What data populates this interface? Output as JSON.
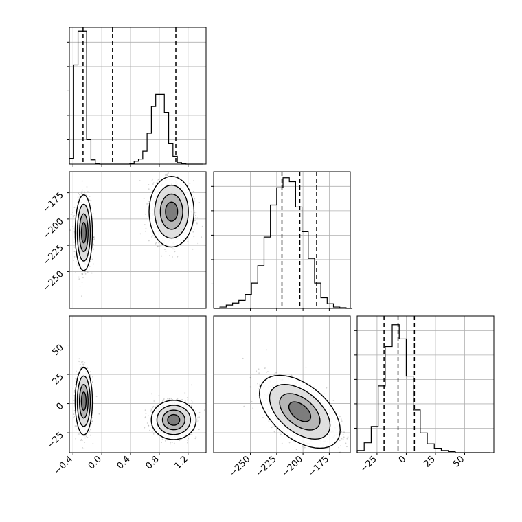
{
  "chart_data": {
    "type": "corner",
    "title": "",
    "colors": {
      "line": "#000000",
      "grid": "#b0b0b0",
      "points": "#000000"
    },
    "grid": true,
    "parameters": [
      {
        "name": "p0",
        "label": "",
        "range": [
          -0.45,
          1.45
        ],
        "ticks": [
          -0.4,
          0.0,
          0.4,
          0.8,
          1.2
        ],
        "tick_labels": [
          "−0.4",
          "0.0",
          "0.4",
          "0.8",
          "1.2"
        ],
        "quantiles": [
          -0.26,
          0.15,
          1.03
        ]
      },
      {
        "name": "p1",
        "label": "",
        "range": [
          -285,
          -155
        ],
        "ticks": [
          -250,
          -225,
          -200,
          -175
        ],
        "tick_labels": [
          "−250",
          "−225",
          "−200",
          "−175"
        ],
        "quantiles": [
          -220,
          -203,
          -187
        ]
      },
      {
        "name": "p2",
        "label": "",
        "range": [
          -42,
          75
        ],
        "ticks": [
          -25,
          0,
          25,
          50
        ],
        "tick_labels": [
          "−25",
          "0",
          "25",
          "50"
        ],
        "quantiles": [
          -19,
          -7,
          7
        ]
      }
    ],
    "histograms": [
      {
        "param": 0,
        "bin_edges": [
          -0.45,
          -0.39,
          -0.33,
          -0.27,
          -0.21,
          -0.15,
          -0.09,
          -0.03,
          0.03,
          0.09,
          0.15,
          0.21,
          0.27,
          0.33,
          0.39,
          0.45,
          0.51,
          0.57,
          0.63,
          0.69,
          0.75,
          0.81,
          0.87,
          0.93,
          0.99,
          1.05,
          1.11,
          1.17,
          1.23,
          1.29,
          1.35,
          1.41
        ],
        "counts": [
          6,
          22,
          137,
          185,
          6,
          1,
          0,
          0,
          0,
          0,
          0,
          0,
          0,
          0,
          0,
          0,
          0,
          0,
          0,
          0,
          0,
          0,
          0,
          0,
          0,
          0,
          0,
          0,
          0,
          0,
          0
        ],
        "max": 190
      },
      {
        "param": 0,
        "note": "combined display",
        "bin_edges": [
          -0.45,
          -0.39,
          -0.33,
          -0.27,
          -0.21,
          -0.15,
          -0.09,
          -0.03,
          0.03,
          0.09,
          0.15,
          0.21,
          0.27,
          0.33,
          0.39,
          0.45,
          0.51,
          0.57,
          0.63,
          0.69,
          0.75,
          0.81,
          0.87,
          0.93,
          0.99,
          1.05,
          1.11,
          1.17,
          1.23,
          1.29,
          1.35,
          1.41
        ],
        "counts": [
          8,
          138,
          185,
          185,
          34,
          6,
          1,
          0,
          0,
          0,
          0,
          0,
          0,
          0,
          1,
          4,
          7,
          18,
          43,
          80,
          97,
          97,
          72,
          29,
          11,
          2,
          1,
          0,
          0,
          0,
          0
        ],
        "max": 190
      },
      {
        "param": 1,
        "bin_edges": [
          -285,
          -279,
          -273,
          -267,
          -261,
          -255,
          -249,
          -243,
          -237,
          -231,
          -225,
          -219,
          -213,
          -207,
          -201,
          -195,
          -189,
          -183,
          -177,
          -171,
          -165,
          -159,
          -153
        ],
        "counts": [
          0,
          2,
          5,
          8,
          12,
          21,
          38,
          64,
          107,
          155,
          181,
          196,
          190,
          152,
          115,
          75,
          38,
          16,
          7,
          2,
          1,
          0
        ],
        "max": 205
      },
      {
        "param": 2,
        "bin_edges": [
          -42,
          -36,
          -30,
          -24,
          -18,
          -12,
          -6,
          0,
          6,
          12,
          18,
          24,
          30,
          36,
          42,
          48,
          54,
          60,
          66,
          72
        ],
        "counts": [
          2,
          9,
          24,
          61,
          97,
          117,
          104,
          70,
          39,
          18,
          8,
          4,
          2,
          1,
          0,
          0,
          0,
          0,
          0
        ],
        "max": 125
      }
    ],
    "scatter": [
      {
        "x_param": 0,
        "y_param": 1,
        "description": "two clusters",
        "clusters": [
          {
            "x": -0.25,
            "y": -213,
            "sx": 0.05,
            "sy": 15
          },
          {
            "x": 0.97,
            "y": -193,
            "sx": 0.13,
            "sy": 14
          }
        ]
      },
      {
        "x_param": 0,
        "y_param": 2,
        "clusters": [
          {
            "x": -0.25,
            "y": 2,
            "sx": 0.05,
            "sy": 12
          },
          {
            "x": 1.0,
            "y": -14,
            "sx": 0.13,
            "sy": 7
          }
        ]
      },
      {
        "x_param": 1,
        "y_param": 2,
        "clusters": [
          {
            "x": -203,
            "y": -7,
            "sx": 16,
            "sy": 13,
            "rho": -0.5
          }
        ]
      }
    ]
  }
}
